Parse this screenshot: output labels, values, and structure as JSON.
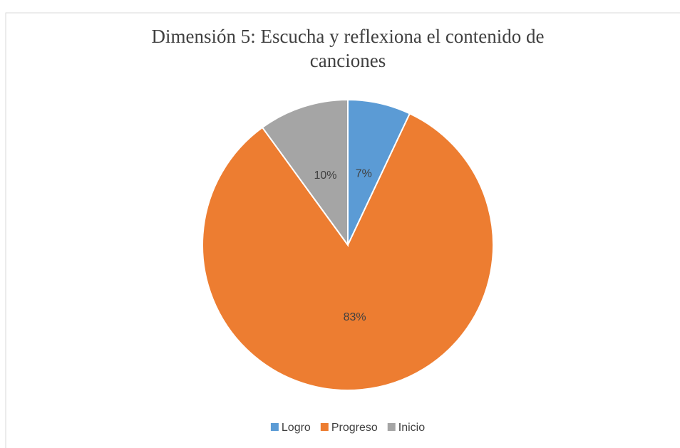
{
  "chart_data": {
    "type": "pie",
    "title": "Dimensión 5: Escucha y reflexiona el contenido de canciones",
    "categories": [
      "Logro",
      "Progreso",
      "Inicio"
    ],
    "values": [
      7,
      83,
      10
    ],
    "value_labels": [
      "7%",
      "83%",
      "10%"
    ],
    "colors": [
      "#5b9bd5",
      "#ed7d31",
      "#a5a5a5"
    ],
    "legend": "bottom"
  }
}
